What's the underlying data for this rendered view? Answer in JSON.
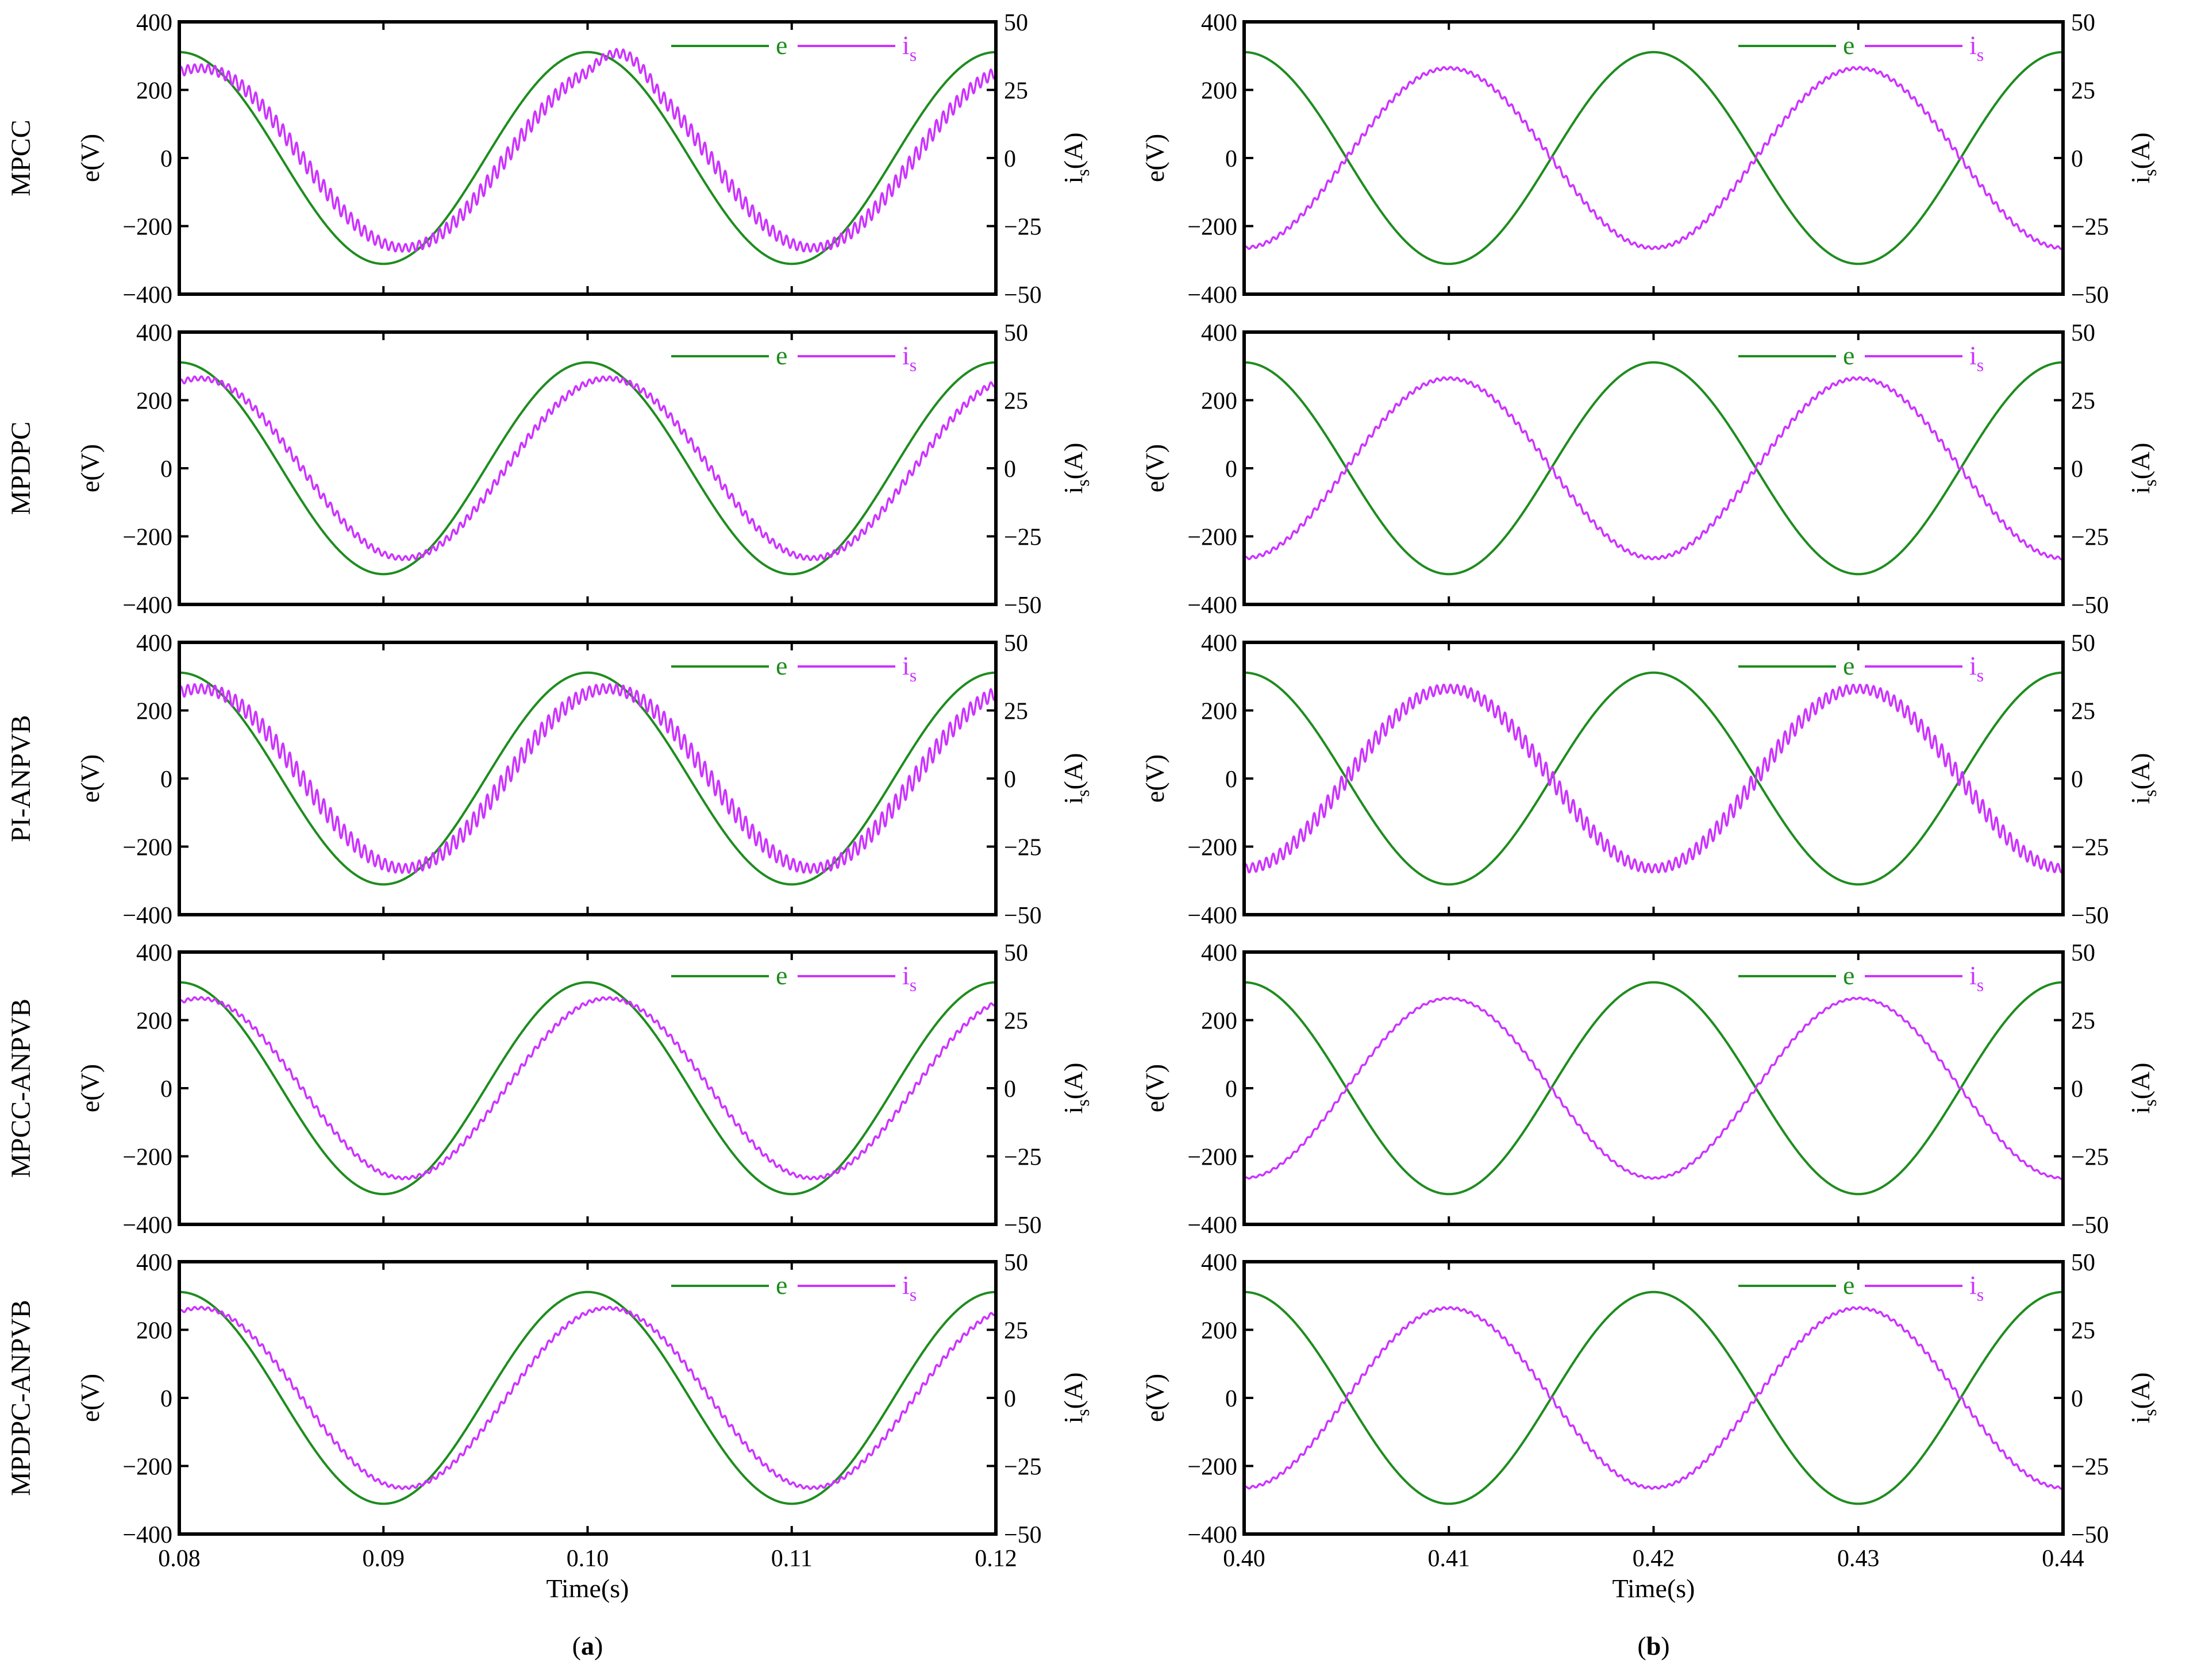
{
  "chart_data": {
    "type": "line",
    "title": "",
    "columns": [
      {
        "label": "a",
        "xlim": [
          0.08,
          0.12
        ],
        "xticks": [
          "0.08",
          "0.09",
          "0.10",
          "0.11",
          "0.12"
        ],
        "xlabel": "Time(s)"
      },
      {
        "label": "b",
        "xlim": [
          0.4,
          0.44
        ],
        "xticks": [
          "0.40",
          "0.41",
          "0.42",
          "0.43",
          "0.44"
        ],
        "xlabel": "Time(s)"
      }
    ],
    "rows": [
      {
        "name": "MPCC",
        "ripple_a": 3.0,
        "ripple_b": 1.0,
        "disturbance": true
      },
      {
        "name": "MPDPC",
        "ripple_a": 1.6,
        "ripple_b": 1.0,
        "disturbance": false
      },
      {
        "name": "PI-ANPVB",
        "ripple_a": 3.5,
        "ripple_b": 3.2,
        "disturbance": false
      },
      {
        "name": "MPCC-ANPVB",
        "ripple_a": 1.0,
        "ripple_b": 0.6,
        "disturbance": false
      },
      {
        "name": "MPDPC-ANPVB",
        "ripple_a": 1.0,
        "ripple_b": 0.8,
        "disturbance": false
      }
    ],
    "left_axis": {
      "label": "e(V)",
      "ylim": [
        -400,
        400
      ],
      "ticks": [
        "400",
        "200",
        "0",
        "−200",
        "−400"
      ]
    },
    "right_axis": {
      "label_main": "i",
      "label_sub": "s",
      "label_tail": "(A)",
      "ylim": [
        -50,
        50
      ],
      "ticks": [
        "50",
        "25",
        "0",
        "−25",
        "−50"
      ]
    },
    "series": [
      {
        "name": "e",
        "color": "#1e8c1e",
        "amplitude_V": 311,
        "frequency_Hz": 50,
        "phase_deg": 90,
        "axis": "left"
      },
      {
        "name": "i",
        "name_sub": "s",
        "color": "#cc33ff",
        "amplitude_A": 33,
        "frequency_Hz": 50,
        "phase_col_a_deg": 72,
        "phase_col_b_deg": -90,
        "axis": "right"
      }
    ],
    "legend_location": "top-right",
    "panel_labels": [
      "(a)",
      "(b)"
    ]
  }
}
